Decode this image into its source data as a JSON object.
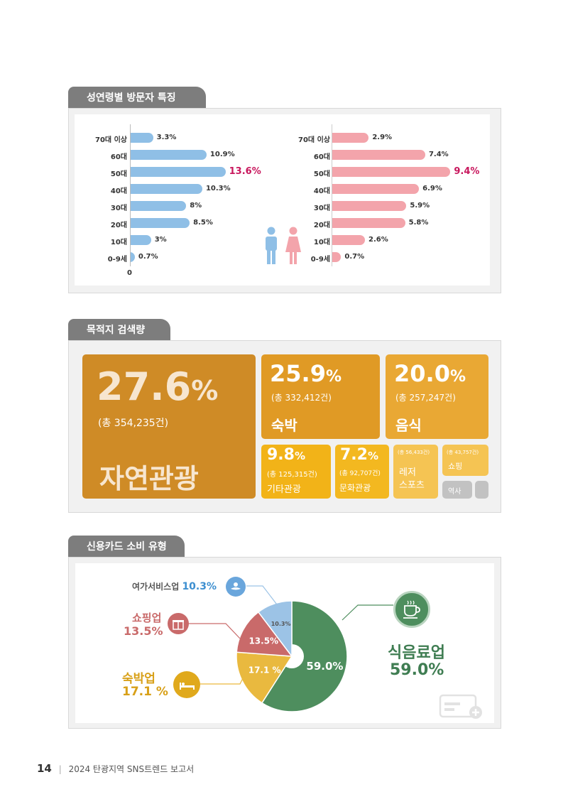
{
  "section1": {
    "title": "성연령별 방문자 특징",
    "axis_zero": "0",
    "male_color": "#8fbfe6",
    "female_color": "#f3a4ab",
    "highlight_color": "#c8175d"
  },
  "chart_data": [
    {
      "type": "bar",
      "orientation": "horizontal",
      "categories": [
        "70대 이상",
        "60대",
        "50대",
        "40대",
        "30대",
        "20대",
        "10대",
        "0-9세"
      ],
      "series": [
        {
          "values": [
            3.3,
            10.9,
            13.6,
            10.3,
            8,
            8.5,
            3,
            0.7
          ]
        }
      ],
      "value_labels": [
        "3.3%",
        "10.9%",
        "13.6%",
        "10.3%",
        "8%",
        "8.5%",
        "3%",
        "0.7%"
      ],
      "highlight_index": 2,
      "color": "#8fbfe6"
    },
    {
      "type": "bar",
      "orientation": "horizontal",
      "categories": [
        "70대 이상",
        "60대",
        "50대",
        "40대",
        "30대",
        "20대",
        "10대",
        "0-9세"
      ],
      "series": [
        {
          "values": [
            2.9,
            7.4,
            9.4,
            6.9,
            5.9,
            5.8,
            2.6,
            0.7
          ]
        }
      ],
      "value_labels": [
        "2.9%",
        "7.4%",
        "9.4%",
        "6.9%",
        "5.9%",
        "5.8%",
        "2.6%",
        "0.7%"
      ],
      "highlight_index": 2,
      "color": "#f3a4ab"
    },
    {
      "type": "pie",
      "categories": [
        "식음료업",
        "숙박업",
        "쇼핑업",
        "여가서비스업"
      ],
      "values": [
        59.0,
        17.1,
        13.5,
        10.3
      ],
      "slice_labels": [
        "59.0%",
        "17.1 %",
        "13.5%",
        "10.3%"
      ],
      "colors": [
        "#4e8e5e",
        "#e9b93f",
        "#c96a6a",
        "#9cc3e6"
      ]
    }
  ],
  "section2": {
    "title": "목적지 검색량",
    "tiles": [
      {
        "pct": "27.6",
        "unit": "%",
        "count": "(총 354,235건)",
        "name": "자연관광",
        "color": "#cf8b26"
      },
      {
        "pct": "25.9",
        "unit": "%",
        "count": "(총 332,412건)",
        "name": "숙박",
        "color": "#e09a25"
      },
      {
        "pct": "20.0",
        "unit": "%",
        "count": "(총 257,247건)",
        "name": "음식",
        "color": "#e9a834"
      },
      {
        "pct": "9.8",
        "unit": "%",
        "count": "(총 125,315건)",
        "name": "기타관광",
        "color": "#f2b318"
      },
      {
        "pct": "7.2",
        "unit": "%",
        "count": "(총 92,707건)",
        "name": "문화관광",
        "color": "#f3b820"
      },
      {
        "count": "(총 56,433건)",
        "name1": "레저",
        "name2": "스포츠",
        "color": "#f5c453"
      },
      {
        "count": "(총 43,757건)",
        "name": "쇼핑",
        "color": "#f5c453"
      },
      {
        "name": "역사",
        "color": "#c2c2c2"
      },
      {
        "name": "",
        "color": "#c2c2c2"
      }
    ]
  },
  "section3": {
    "title": "신용카드 소비 유형",
    "leisure": {
      "name": "여가서비스업",
      "pct": "10.3%",
      "color": "#3d8fd0"
    },
    "shopping": {
      "name": "쇼핑업",
      "pct": "13.5%",
      "color": "#c96a6a"
    },
    "lodging": {
      "name": "숙박업",
      "pct": "17.1 %",
      "color": "#d8a018"
    },
    "food": {
      "name": "식음료업",
      "pct": "59.0%",
      "color": "#3f7d52"
    }
  },
  "footer": {
    "page_number": "14",
    "separator": "|",
    "doc_title": "2024 탄광지역 SNS트렌드 보고서"
  }
}
